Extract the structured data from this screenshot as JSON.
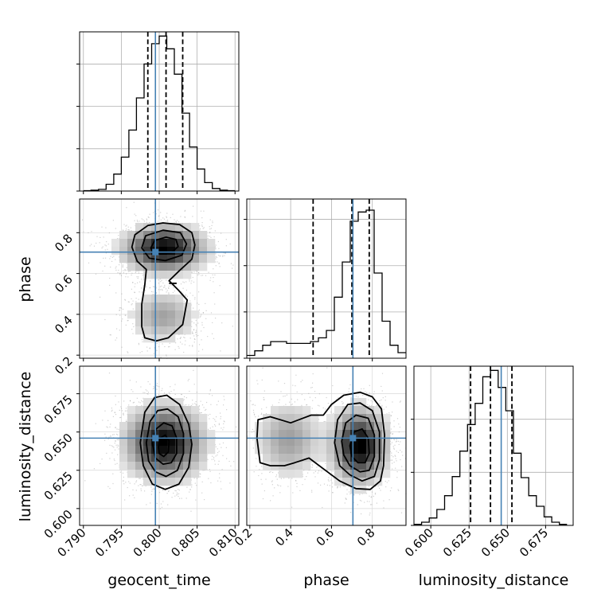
{
  "chart_data": {
    "type": "corner",
    "parameters": [
      "geocent_time",
      "phase",
      "luminosity_distance"
    ],
    "truths": {
      "geocent_time": 0.7995,
      "phase": 0.705,
      "luminosity_distance": 0.646
    },
    "ranges": {
      "geocent_time": [
        0.7895,
        0.8105
      ],
      "phase": [
        0.185,
        0.965
      ],
      "luminosity_distance": [
        0.589,
        0.693
      ]
    },
    "ticks": {
      "geocent_time": [
        "0.790",
        "0.795",
        "0.800",
        "0.805",
        "0.810"
      ],
      "phase_x": [
        "0.2",
        "0.4",
        "0.6",
        "0.8"
      ],
      "phase_y": [
        "0.2",
        "0.4",
        "0.6",
        "0.8"
      ],
      "luminosity_distance_x": [
        "0.600",
        "0.625",
        "0.650",
        "0.675"
      ],
      "luminosity_distance_y": [
        "0.600",
        "0.625",
        "0.650",
        "0.675"
      ]
    },
    "labels": {
      "x": [
        "geocent_time",
        "phase",
        "luminosity_distance"
      ],
      "y": [
        "phase",
        "luminosity_distance"
      ]
    },
    "quantile_lines": {
      "geocent_time": [
        0.7985,
        0.8009,
        0.8031
      ],
      "phase": [
        0.51,
        0.7,
        0.785
      ],
      "luminosity_distance": [
        0.626,
        0.639,
        0.653
      ]
    },
    "histograms": {
      "geocent_time": {
        "edges": [
          0.79,
          0.791,
          0.792,
          0.793,
          0.794,
          0.795,
          0.796,
          0.797,
          0.798,
          0.799,
          0.8,
          0.801,
          0.802,
          0.803,
          0.804,
          0.805,
          0.806,
          0.807,
          0.808,
          0.809,
          0.81
        ],
        "counts": [
          0.5,
          1,
          2,
          8,
          20,
          40,
          72,
          110,
          150,
          174,
          183,
          168,
          138,
          92,
          52,
          26,
          10,
          3,
          1,
          0.5
        ]
      },
      "phase": {
        "edges": [
          0.185,
          0.224,
          0.263,
          0.302,
          0.341,
          0.38,
          0.419,
          0.458,
          0.497,
          0.536,
          0.575,
          0.614,
          0.653,
          0.692,
          0.731,
          0.77,
          0.809,
          0.848,
          0.887,
          0.926,
          0.965
        ],
        "counts": [
          3,
          8,
          14,
          18,
          18,
          16,
          16,
          16,
          18,
          22,
          30,
          66,
          104,
          148,
          158,
          160,
          92,
          40,
          14,
          6
        ]
      },
      "luminosity_distance": {
        "edges": [
          0.589,
          0.594,
          0.599,
          0.604,
          0.609,
          0.614,
          0.619,
          0.624,
          0.629,
          0.634,
          0.639,
          0.644,
          0.649,
          0.654,
          0.659,
          0.664,
          0.669,
          0.674,
          0.679,
          0.684,
          0.689
        ],
        "counts": [
          1,
          3,
          7,
          15,
          28,
          46,
          70,
          95,
          115,
          140,
          146,
          130,
          108,
          68,
          45,
          28,
          18,
          8,
          3,
          1
        ]
      }
    },
    "ymax": {
      "geocent_time": 188,
      "phase": 172,
      "luminosity_distance": 150
    },
    "hist_yticks": {
      "geocent_time": [
        0,
        50,
        100,
        150
      ],
      "phase": [
        0,
        50,
        100,
        150
      ],
      "luminosity_distance": [
        0,
        50,
        100
      ]
    },
    "joint_modes": {
      "time_phase": [
        {
          "cx": 0.8007,
          "cy": 0.72,
          "sx": 0.0028,
          "sy": 0.06,
          "w": 0.78
        },
        {
          "cx": 0.8005,
          "cy": 0.39,
          "sx": 0.0024,
          "sy": 0.07,
          "w": 0.22
        }
      ],
      "time_dist": [
        {
          "cx": 0.8007,
          "cy": 0.643,
          "sx": 0.0027,
          "sy": 0.0125,
          "w": 1.0
        }
      ],
      "phase_dist": [
        {
          "cx": 0.735,
          "cy": 0.641,
          "sx": 0.07,
          "sy": 0.0125,
          "w": 0.78
        },
        {
          "cx": 0.39,
          "cy": 0.645,
          "sx": 0.09,
          "sy": 0.0135,
          "w": 0.22
        }
      ]
    },
    "contours": {
      "time_phase": [
        [
          [
            0.7964,
            0.73
          ],
          [
            0.7968,
            0.79
          ],
          [
            0.7985,
            0.835
          ],
          [
            0.8005,
            0.848
          ],
          [
            0.8027,
            0.84
          ],
          [
            0.8043,
            0.8
          ],
          [
            0.8047,
            0.74
          ],
          [
            0.8043,
            0.67
          ],
          [
            0.8027,
            0.615
          ],
          [
            0.8013,
            0.565
          ],
          [
            0.8025,
            0.52
          ],
          [
            0.8037,
            0.47
          ],
          [
            0.8031,
            0.35
          ],
          [
            0.8012,
            0.285
          ],
          [
            0.7996,
            0.27
          ],
          [
            0.7981,
            0.285
          ],
          [
            0.7977,
            0.34
          ],
          [
            0.7977,
            0.45
          ],
          [
            0.7981,
            0.545
          ],
          [
            0.7983,
            0.62
          ],
          [
            0.7971,
            0.66
          ],
          [
            0.7964,
            0.73
          ]
        ],
        [
          [
            0.7977,
            0.725
          ],
          [
            0.7982,
            0.785
          ],
          [
            0.8005,
            0.812
          ],
          [
            0.8028,
            0.8
          ],
          [
            0.8036,
            0.745
          ],
          [
            0.803,
            0.69
          ],
          [
            0.8008,
            0.663
          ],
          [
            0.7987,
            0.675
          ],
          [
            0.7977,
            0.725
          ]
        ],
        [
          [
            0.7989,
            0.725
          ],
          [
            0.7994,
            0.762
          ],
          [
            0.8009,
            0.778
          ],
          [
            0.8022,
            0.767
          ],
          [
            0.8025,
            0.732
          ],
          [
            0.8016,
            0.702
          ],
          [
            0.8002,
            0.697
          ],
          [
            0.7991,
            0.708
          ],
          [
            0.7989,
            0.725
          ]
        ],
        [
          [
            0.8013,
            0.552
          ],
          [
            0.8023,
            0.552
          ]
        ]
      ],
      "time_dist": [
        [
          [
            0.7975,
            0.643
          ],
          [
            0.7981,
            0.663
          ],
          [
            0.7994,
            0.6725
          ],
          [
            0.801,
            0.674
          ],
          [
            0.8027,
            0.668
          ],
          [
            0.8039,
            0.655
          ],
          [
            0.8043,
            0.642
          ],
          [
            0.8039,
            0.627
          ],
          [
            0.8026,
            0.616
          ],
          [
            0.8008,
            0.6125
          ],
          [
            0.7991,
            0.616
          ],
          [
            0.7979,
            0.628
          ],
          [
            0.7975,
            0.643
          ]
        ],
        [
          [
            0.7983,
            0.643
          ],
          [
            0.7988,
            0.657
          ],
          [
            0.7998,
            0.664
          ],
          [
            0.8011,
            0.665
          ],
          [
            0.8025,
            0.66
          ],
          [
            0.8032,
            0.649
          ],
          [
            0.8032,
            0.636
          ],
          [
            0.8024,
            0.625
          ],
          [
            0.8009,
            0.621
          ],
          [
            0.7995,
            0.624
          ],
          [
            0.7986,
            0.631
          ],
          [
            0.7983,
            0.643
          ]
        ],
        [
          [
            0.7991,
            0.643
          ],
          [
            0.7996,
            0.652
          ],
          [
            0.8006,
            0.656
          ],
          [
            0.8017,
            0.654
          ],
          [
            0.8023,
            0.646
          ],
          [
            0.8023,
            0.636
          ],
          [
            0.8016,
            0.63
          ],
          [
            0.8005,
            0.629
          ],
          [
            0.7995,
            0.633
          ],
          [
            0.7991,
            0.643
          ]
        ],
        [
          [
            0.7999,
            0.64
          ],
          [
            0.8001,
            0.646
          ],
          [
            0.8008,
            0.648
          ],
          [
            0.8013,
            0.644
          ],
          [
            0.8012,
            0.637
          ],
          [
            0.8006,
            0.634
          ],
          [
            0.8,
            0.636
          ],
          [
            0.7999,
            0.64
          ]
        ]
      ],
      "phase_dist": [
        [
          [
            0.235,
            0.646
          ],
          [
            0.24,
            0.658
          ],
          [
            0.3,
            0.66
          ],
          [
            0.4,
            0.656
          ],
          [
            0.5,
            0.661
          ],
          [
            0.56,
            0.661
          ],
          [
            0.6,
            0.668
          ],
          [
            0.66,
            0.674
          ],
          [
            0.74,
            0.676
          ],
          [
            0.8,
            0.673
          ],
          [
            0.845,
            0.665
          ],
          [
            0.86,
            0.648
          ],
          [
            0.855,
            0.628
          ],
          [
            0.84,
            0.618
          ],
          [
            0.79,
            0.6125
          ],
          [
            0.72,
            0.613
          ],
          [
            0.64,
            0.618
          ],
          [
            0.58,
            0.624
          ],
          [
            0.49,
            0.633
          ],
          [
            0.42,
            0.63
          ],
          [
            0.37,
            0.628
          ],
          [
            0.3,
            0.628
          ],
          [
            0.25,
            0.63
          ],
          [
            0.235,
            0.646
          ]
        ],
        [
          [
            0.615,
            0.643
          ],
          [
            0.63,
            0.658
          ],
          [
            0.68,
            0.668
          ],
          [
            0.74,
            0.669
          ],
          [
            0.8,
            0.664
          ],
          [
            0.835,
            0.65
          ],
          [
            0.835,
            0.632
          ],
          [
            0.81,
            0.621
          ],
          [
            0.75,
            0.618
          ],
          [
            0.69,
            0.622
          ],
          [
            0.64,
            0.628
          ],
          [
            0.615,
            0.643
          ]
        ],
        [
          [
            0.65,
            0.644
          ],
          [
            0.67,
            0.656
          ],
          [
            0.72,
            0.661
          ],
          [
            0.78,
            0.659
          ],
          [
            0.81,
            0.648
          ],
          [
            0.81,
            0.634
          ],
          [
            0.785,
            0.625
          ],
          [
            0.74,
            0.624
          ],
          [
            0.69,
            0.628
          ],
          [
            0.66,
            0.635
          ],
          [
            0.65,
            0.644
          ]
        ],
        [
          [
            0.69,
            0.641
          ],
          [
            0.71,
            0.65
          ],
          [
            0.75,
            0.652
          ],
          [
            0.78,
            0.646
          ],
          [
            0.785,
            0.636
          ],
          [
            0.765,
            0.63
          ],
          [
            0.73,
            0.63
          ],
          [
            0.7,
            0.634
          ],
          [
            0.69,
            0.641
          ]
        ]
      ]
    }
  }
}
